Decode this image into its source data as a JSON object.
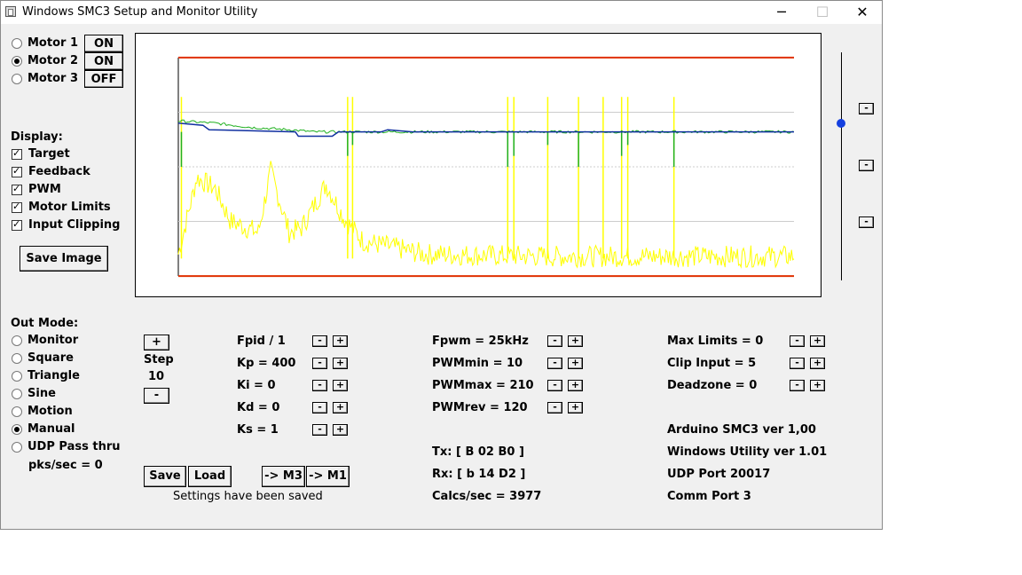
{
  "window": {
    "title": "Windows SMC3 Setup and Monitor Utility",
    "minimize_glyph": "─",
    "maximize_glyph": "☐",
    "close_glyph": "✕"
  },
  "motors": [
    {
      "label": "Motor 1",
      "selected": false,
      "state": "ON"
    },
    {
      "label": "Motor 2",
      "selected": true,
      "state": "ON"
    },
    {
      "label": "Motor 3",
      "selected": false,
      "state": "OFF"
    }
  ],
  "display": {
    "heading": "Display:",
    "options": [
      {
        "label": "Target",
        "checked": true
      },
      {
        "label": "Feedback",
        "checked": true
      },
      {
        "label": "PWM",
        "checked": true
      },
      {
        "label": "Motor Limits",
        "checked": true
      },
      {
        "label": "Input Clipping",
        "checked": true
      }
    ],
    "save_image_label": "Save Image"
  },
  "out_mode": {
    "heading": "Out Mode:",
    "options": [
      {
        "label": "Monitor",
        "selected": false
      },
      {
        "label": "Square",
        "selected": false
      },
      {
        "label": "Triangle",
        "selected": false
      },
      {
        "label": "Sine",
        "selected": false
      },
      {
        "label": "Motion",
        "selected": false
      },
      {
        "label": "Manual",
        "selected": true
      },
      {
        "label": "UDP Pass thru",
        "selected": false
      }
    ],
    "pks_label": "pks/sec = 0"
  },
  "step": {
    "plus_label": "+",
    "label": "Step",
    "value": "10",
    "minus_label": "-"
  },
  "pid_params": [
    "Fpid / 1",
    "Kp = 400",
    "Ki = 0",
    "Kd = 0",
    "Ks = 1"
  ],
  "pwm_params": [
    "Fpwm = 25kHz",
    "PWMmin = 10",
    "PWMmax = 210",
    "PWMrev = 120"
  ],
  "limit_params": [
    "Max Limits = 0",
    "Clip Input = 5",
    "Deadzone = 0"
  ],
  "adjust": {
    "minus": "-",
    "plus": "+"
  },
  "comms": {
    "tx": "Tx: [ B 02 B0 ]",
    "rx": "Rx: [ b 14 D2 ]",
    "calcs": "Calcs/sec = 3977"
  },
  "info": {
    "arduino": "Arduino SMC3 ver 1,00",
    "windows": "Windows Utility ver 1.01",
    "udp": "UDP Port 20017",
    "comm": "Comm Port 3"
  },
  "settings": {
    "save_label": "Save",
    "load_label": "Load",
    "to_m3_label": "-> M3",
    "to_m1_label": "-> M1",
    "status": "Settings have been saved"
  },
  "side_buttons": [
    "-",
    "-",
    "-"
  ],
  "slider_level": 0.31,
  "colors": {
    "limits": "#e03000",
    "target": "#1030a0",
    "feedback": "#20b020",
    "pwm": "#ffff00",
    "grid": "#cccccc",
    "slider": "#1540e0"
  },
  "chart_data": {
    "type": "line",
    "grid": true,
    "series": [
      {
        "key": "motor_limits",
        "values": [
          [
            0,
            100
          ],
          [
            1000,
            100
          ]
        ]
      },
      {
        "key": "motor_limits_low",
        "values": [
          [
            0,
            0
          ],
          [
            1000,
            0
          ]
        ]
      },
      {
        "key": "target",
        "values": [
          [
            0,
            70
          ],
          [
            40,
            69
          ],
          [
            50,
            67
          ],
          [
            190,
            66
          ],
          [
            195,
            64
          ],
          [
            250,
            64
          ],
          [
            260,
            66
          ],
          [
            330,
            66
          ],
          [
            340,
            67
          ],
          [
            380,
            66
          ],
          [
            1000,
            66
          ]
        ]
      },
      {
        "key": "feedback",
        "values": [
          [
            0,
            71
          ],
          [
            60,
            70
          ],
          [
            120,
            68
          ],
          [
            180,
            67
          ],
          [
            220,
            66
          ],
          [
            300,
            66
          ],
          [
            1000,
            66
          ]
        ]
      },
      {
        "key": "pwm",
        "values": [
          [
            0,
            10
          ],
          [
            30,
            45
          ],
          [
            60,
            40
          ],
          [
            85,
            25
          ],
          [
            130,
            20
          ],
          [
            150,
            48
          ],
          [
            180,
            20
          ],
          [
            200,
            22
          ],
          [
            240,
            42
          ],
          [
            270,
            26
          ],
          [
            300,
            16
          ],
          [
            400,
            10
          ],
          [
            600,
            9
          ],
          [
            800,
            9
          ],
          [
            1000,
            9
          ]
        ]
      }
    ],
    "spikes_pwm_x": [
      5,
      275,
      283,
      535,
      545,
      600,
      650,
      690,
      720,
      730,
      805
    ],
    "spikes_feedback_x": [
      5,
      275,
      283,
      535,
      545,
      600,
      650,
      720,
      730,
      805
    ],
    "xlim": [
      0,
      1000
    ],
    "ylim": [
      -2,
      102
    ]
  }
}
